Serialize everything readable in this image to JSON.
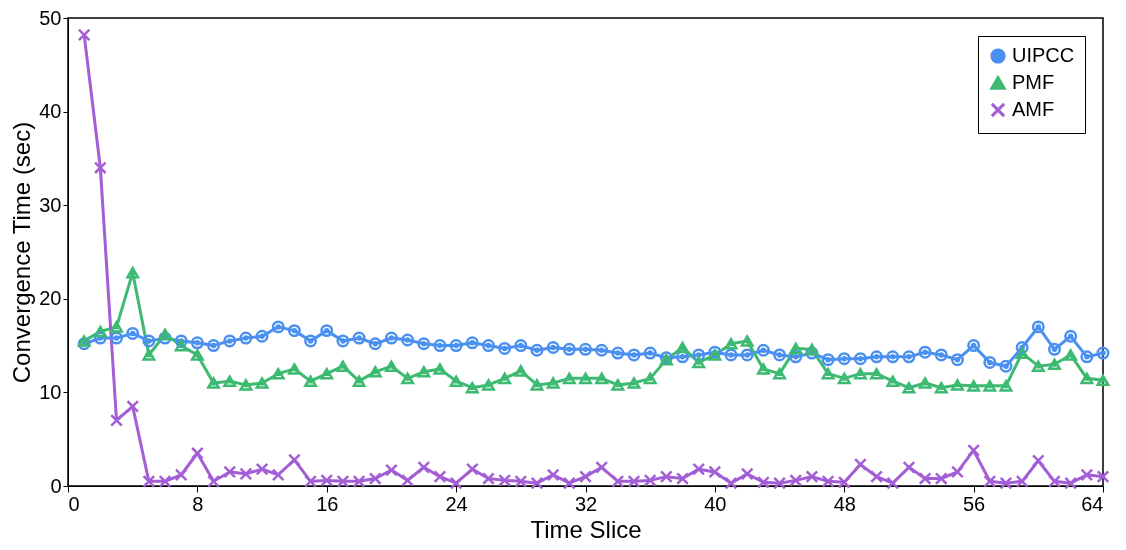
{
  "chart_data": {
    "type": "line",
    "xlabel": "Time Slice",
    "ylabel": "Convergence Time (sec)",
    "x": [
      1,
      2,
      3,
      4,
      5,
      6,
      7,
      8,
      9,
      10,
      11,
      12,
      13,
      14,
      15,
      16,
      17,
      18,
      19,
      20,
      21,
      22,
      23,
      24,
      25,
      26,
      27,
      28,
      29,
      30,
      31,
      32,
      33,
      34,
      35,
      36,
      37,
      38,
      39,
      40,
      41,
      42,
      43,
      44,
      45,
      46,
      47,
      48,
      49,
      50,
      51,
      52,
      53,
      54,
      55,
      56,
      57,
      58,
      59,
      60,
      61,
      62,
      63,
      64
    ],
    "series": [
      {
        "name": "UIPCC",
        "color": "#4a90f0",
        "marker": "circle",
        "values": [
          15.2,
          15.8,
          15.8,
          16.3,
          15.5,
          15.8,
          15.5,
          15.3,
          15.0,
          15.5,
          15.8,
          16.0,
          17.0,
          16.6,
          15.5,
          16.6,
          15.5,
          15.8,
          15.2,
          15.8,
          15.6,
          15.2,
          15.0,
          15.0,
          15.3,
          15.0,
          14.7,
          15.0,
          14.5,
          14.8,
          14.6,
          14.6,
          14.5,
          14.2,
          14.0,
          14.2,
          13.7,
          13.8,
          14.0,
          14.3,
          14.0,
          14.0,
          14.5,
          14.0,
          13.8,
          14.2,
          13.5,
          13.6,
          13.6,
          13.8,
          13.8,
          13.8,
          14.3,
          14.0,
          13.5,
          15.0,
          13.2,
          12.8,
          14.8,
          17.0,
          14.6,
          16.0,
          13.8,
          14.2
        ]
      },
      {
        "name": "PMF",
        "color": "#3dba72",
        "marker": "triangle",
        "values": [
          15.5,
          16.5,
          17.0,
          22.8,
          14.0,
          16.2,
          15.0,
          14.0,
          11.0,
          11.2,
          10.8,
          11.0,
          12.0,
          12.5,
          11.2,
          12.0,
          12.8,
          11.2,
          12.2,
          12.8,
          11.5,
          12.2,
          12.5,
          11.2,
          10.5,
          10.8,
          11.5,
          12.3,
          10.8,
          11.0,
          11.5,
          11.5,
          11.5,
          10.8,
          11.0,
          11.5,
          13.5,
          14.8,
          13.2,
          14.0,
          15.2,
          15.5,
          12.5,
          12.0,
          14.7,
          14.6,
          12.0,
          11.5,
          12.0,
          12.0,
          11.2,
          10.5,
          11.0,
          10.5,
          10.8,
          10.7,
          10.7,
          10.7,
          14.2,
          12.8,
          13.0,
          14.0,
          11.5,
          11.3
        ]
      },
      {
        "name": "AMF",
        "color": "#a35ed6",
        "marker": "cross",
        "values": [
          48.2,
          34.0,
          7.0,
          8.5,
          0.5,
          0.5,
          1.2,
          3.5,
          0.5,
          1.5,
          1.3,
          1.8,
          1.2,
          2.8,
          0.5,
          0.6,
          0.5,
          0.5,
          0.8,
          1.7,
          0.6,
          2.0,
          1.0,
          0.3,
          1.8,
          0.8,
          0.6,
          0.5,
          0.3,
          1.2,
          0.3,
          1.0,
          2.0,
          0.5,
          0.5,
          0.6,
          1.0,
          0.8,
          1.8,
          1.5,
          0.3,
          1.3,
          0.4,
          0.3,
          0.6,
          1.0,
          0.5,
          0.4,
          2.3,
          1.0,
          0.3,
          2.0,
          0.8,
          0.8,
          1.5,
          3.8,
          0.5,
          0.3,
          0.5,
          2.7,
          0.5,
          0.3,
          1.2,
          1.0
        ]
      }
    ],
    "xlim": [
      0,
      64
    ],
    "xticks": [
      0,
      8,
      16,
      24,
      32,
      40,
      48,
      56,
      64
    ],
    "ylim": [
      0,
      50
    ],
    "yticks": [
      0,
      10,
      20,
      30,
      40,
      50
    ],
    "grid": false,
    "legend": "top right",
    "line_style": "solid"
  }
}
